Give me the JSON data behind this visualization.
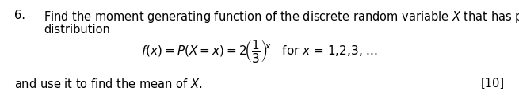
{
  "bg_color": "#ffffff",
  "text_color": "#000000",
  "fontsize": 10.5,
  "math_fontsize": 11,
  "fig_width": 6.55,
  "fig_height": 1.25,
  "dpi": 100
}
